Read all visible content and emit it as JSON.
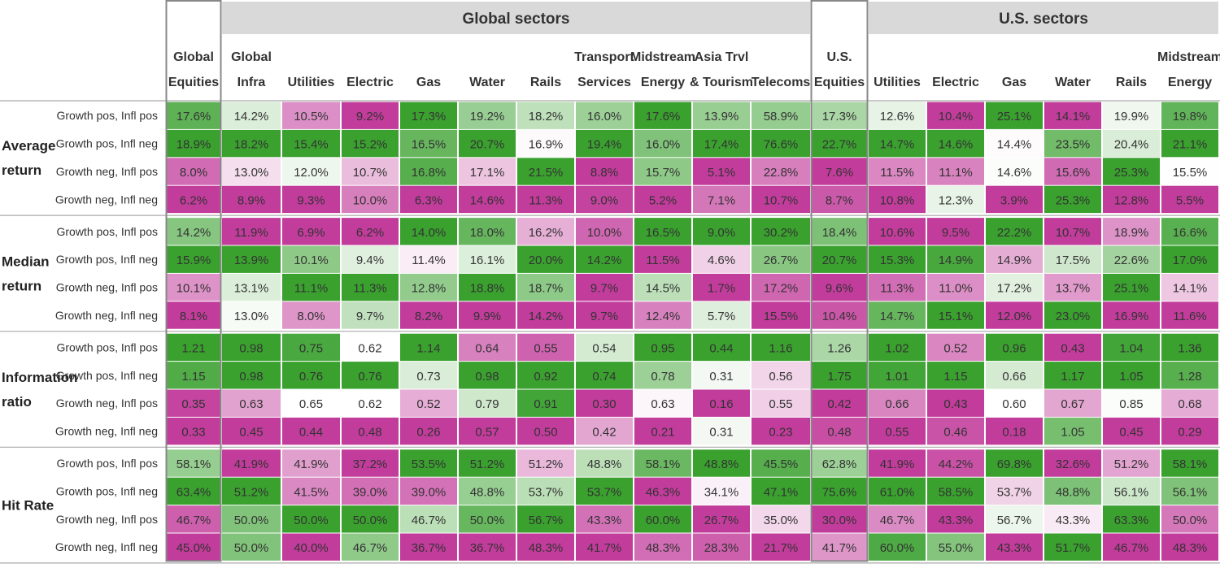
{
  "chart_data": {
    "type": "heatmap",
    "column_groups": [
      {
        "label": "",
        "span": [
          0,
          0
        ]
      },
      {
        "label": "Global sectors",
        "span": [
          1,
          10
        ]
      },
      {
        "label": "",
        "span": [
          11,
          11
        ]
      },
      {
        "label": "U.S. sectors",
        "span": [
          12,
          17
        ]
      }
    ],
    "columns": [
      [
        "Global",
        "Equities"
      ],
      [
        "Global",
        "Infra"
      ],
      [
        "",
        "Utilities"
      ],
      [
        "",
        "Electric"
      ],
      [
        "",
        "Gas"
      ],
      [
        "",
        "Water"
      ],
      [
        "",
        "Rails"
      ],
      [
        "Transport",
        "Services"
      ],
      [
        "Midstream",
        "Energy"
      ],
      [
        "Asia Trvl",
        "& Tourism"
      ],
      [
        "",
        "Telecoms"
      ],
      [
        "U.S.",
        "Equities"
      ],
      [
        "",
        "Utilities"
      ],
      [
        "",
        "Electric"
      ],
      [
        "",
        "Gas"
      ],
      [
        "",
        "Water"
      ],
      [
        "",
        "Rails"
      ],
      [
        "Midstream",
        "Energy"
      ]
    ],
    "row_groups": [
      {
        "label": [
          "Average",
          "return"
        ],
        "rows": [
          {
            "label": "Growth pos, Infl pos",
            "cells": [
              "17.6%",
              "14.2%",
              "10.5%",
              "9.2%",
              "17.3%",
              "19.2%",
              "18.2%",
              "16.0%",
              "17.6%",
              "13.9%",
              "58.9%",
              "17.3%",
              "12.6%",
              "10.4%",
              "25.1%",
              "14.1%",
              "19.9%",
              "19.8%"
            ]
          },
          {
            "label": "Growth pos, Infl neg",
            "cells": [
              "18.9%",
              "18.2%",
              "15.4%",
              "15.2%",
              "16.5%",
              "20.7%",
              "16.9%",
              "19.4%",
              "16.0%",
              "17.4%",
              "76.6%",
              "22.7%",
              "14.7%",
              "14.6%",
              "14.4%",
              "23.5%",
              "20.4%",
              "21.1%"
            ]
          },
          {
            "label": "Growth neg, Infl pos",
            "cells": [
              "8.0%",
              "13.0%",
              "12.0%",
              "10.7%",
              "16.8%",
              "17.1%",
              "21.5%",
              "8.8%",
              "15.7%",
              "5.1%",
              "22.8%",
              "7.6%",
              "11.5%",
              "11.1%",
              "14.6%",
              "15.6%",
              "25.3%",
              "15.5%"
            ]
          },
          {
            "label": "Growth neg, Infl neg",
            "cells": [
              "6.2%",
              "8.9%",
              "9.3%",
              "10.0%",
              "6.3%",
              "14.6%",
              "11.3%",
              "9.0%",
              "5.2%",
              "7.1%",
              "10.7%",
              "8.7%",
              "10.8%",
              "12.3%",
              "3.9%",
              "25.3%",
              "12.8%",
              "5.5%"
            ]
          }
        ]
      },
      {
        "label": [
          "Median",
          "return"
        ],
        "rows": [
          {
            "label": "Growth pos, Infl pos",
            "cells": [
              "14.2%",
              "11.9%",
              "6.9%",
              "6.2%",
              "14.0%",
              "18.0%",
              "16.2%",
              "10.0%",
              "16.5%",
              "9.0%",
              "30.2%",
              "18.4%",
              "10.6%",
              "9.5%",
              "22.2%",
              "10.7%",
              "18.9%",
              "16.6%"
            ]
          },
          {
            "label": "Growth pos, Infl neg",
            "cells": [
              "15.9%",
              "13.9%",
              "10.1%",
              "9.4%",
              "11.4%",
              "16.1%",
              "20.0%",
              "14.2%",
              "11.5%",
              "4.6%",
              "26.7%",
              "20.7%",
              "15.3%",
              "14.9%",
              "14.9%",
              "17.5%",
              "22.6%",
              "17.0%"
            ]
          },
          {
            "label": "Growth neg, Infl pos",
            "cells": [
              "10.1%",
              "13.1%",
              "11.1%",
              "11.3%",
              "12.8%",
              "18.8%",
              "18.7%",
              "9.7%",
              "14.5%",
              "1.7%",
              "17.2%",
              "9.6%",
              "11.3%",
              "11.0%",
              "17.2%",
              "13.7%",
              "25.1%",
              "14.1%"
            ]
          },
          {
            "label": "Growth neg, Infl neg",
            "cells": [
              "8.1%",
              "13.0%",
              "8.0%",
              "9.7%",
              "8.2%",
              "9.9%",
              "14.2%",
              "9.7%",
              "12.4%",
              "5.7%",
              "15.5%",
              "10.4%",
              "14.7%",
              "15.1%",
              "12.0%",
              "23.0%",
              "16.9%",
              "11.6%"
            ]
          }
        ]
      },
      {
        "label": [
          "Information",
          "ratio"
        ],
        "rows": [
          {
            "label": "Growth pos, Infl pos",
            "cells": [
              "1.21",
              "0.98",
              "0.75",
              "0.62",
              "1.14",
              "0.64",
              "0.55",
              "0.54",
              "0.95",
              "0.44",
              "1.16",
              "1.26",
              "1.02",
              "0.52",
              "0.96",
              "0.43",
              "1.04",
              "1.36"
            ]
          },
          {
            "label": "Growth pos, Infl neg",
            "cells": [
              "1.15",
              "0.98",
              "0.76",
              "0.76",
              "0.73",
              "0.98",
              "0.92",
              "0.74",
              "0.78",
              "0.31",
              "0.56",
              "1.75",
              "1.01",
              "1.15",
              "0.66",
              "1.17",
              "1.05",
              "1.28"
            ]
          },
          {
            "label": "Growth neg, Infl pos",
            "cells": [
              "0.35",
              "0.63",
              "0.65",
              "0.62",
              "0.52",
              "0.79",
              "0.91",
              "0.30",
              "0.63",
              "0.16",
              "0.55",
              "0.42",
              "0.66",
              "0.43",
              "0.60",
              "0.67",
              "0.85",
              "0.68"
            ]
          },
          {
            "label": "Growth neg, Infl neg",
            "cells": [
              "0.33",
              "0.45",
              "0.44",
              "0.48",
              "0.26",
              "0.57",
              "0.50",
              "0.42",
              "0.21",
              "0.31",
              "0.23",
              "0.48",
              "0.55",
              "0.46",
              "0.18",
              "1.05",
              "0.45",
              "0.29"
            ]
          }
        ]
      },
      {
        "label": [
          "Hit Rate"
        ],
        "rows": [
          {
            "label": "Growth pos, Infl pos",
            "cells": [
              "58.1%",
              "41.9%",
              "41.9%",
              "37.2%",
              "53.5%",
              "51.2%",
              "51.2%",
              "48.8%",
              "58.1%",
              "48.8%",
              "45.5%",
              "62.8%",
              "41.9%",
              "44.2%",
              "69.8%",
              "32.6%",
              "51.2%",
              "58.1%"
            ]
          },
          {
            "label": "Growth pos, Infl neg",
            "cells": [
              "63.4%",
              "51.2%",
              "41.5%",
              "39.0%",
              "39.0%",
              "48.8%",
              "53.7%",
              "53.7%",
              "46.3%",
              "34.1%",
              "47.1%",
              "75.6%",
              "61.0%",
              "58.5%",
              "53.7%",
              "48.8%",
              "56.1%",
              "56.1%"
            ]
          },
          {
            "label": "Growth neg, Infl pos",
            "cells": [
              "46.7%",
              "50.0%",
              "50.0%",
              "50.0%",
              "46.7%",
              "50.0%",
              "56.7%",
              "43.3%",
              "60.0%",
              "26.7%",
              "35.0%",
              "30.0%",
              "46.7%",
              "43.3%",
              "56.7%",
              "43.3%",
              "63.3%",
              "50.0%"
            ]
          },
          {
            "label": "Growth neg, Infl neg",
            "cells": [
              "45.0%",
              "50.0%",
              "40.0%",
              "46.7%",
              "36.7%",
              "36.7%",
              "48.3%",
              "41.7%",
              "48.3%",
              "28.3%",
              "21.7%",
              "41.7%",
              "60.0%",
              "55.0%",
              "43.3%",
              "51.7%",
              "46.7%",
              "48.3%"
            ]
          }
        ]
      }
    ],
    "color_scale": {
      "low": "#c23c9b",
      "mid": "#ffffff",
      "high": "#3aa12f",
      "method": "diverging per column within each metric block"
    },
    "colors": {
      "header_band": "#d9d9d9",
      "text": "#333333",
      "outline": "#888888",
      "divider": "#aaaaaa"
    }
  }
}
